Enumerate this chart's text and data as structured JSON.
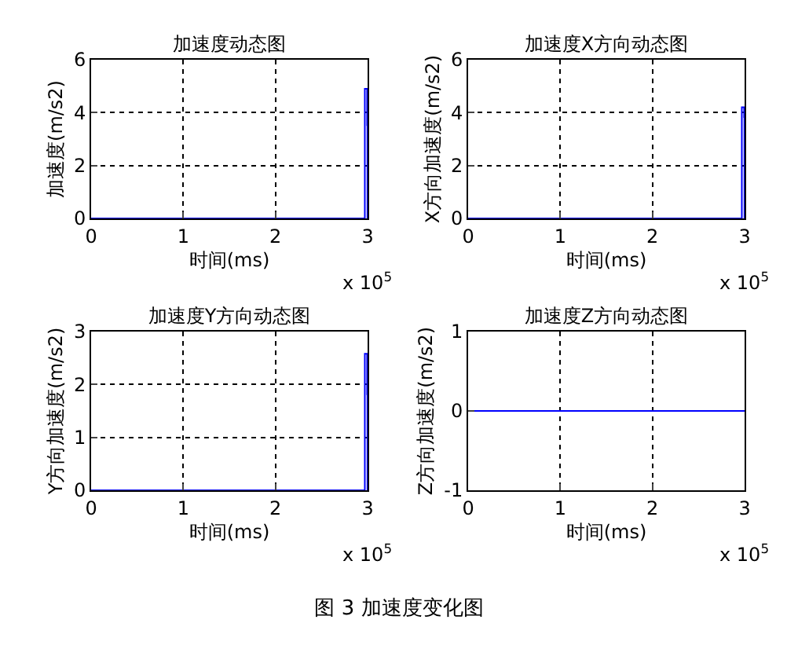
{
  "chart_data": [
    {
      "type": "line",
      "title": "加速度动态图",
      "xlabel": "时间(ms)",
      "ylabel": "加速度(m/s2)",
      "x": [
        0,
        2.97,
        2.97,
        2.995,
        2.995,
        2.996,
        2.997,
        2.998,
        2.999
      ],
      "series": [
        {
          "color": "#0000ff",
          "values": [
            0,
            0,
            4.9,
            4.9,
            3.5,
            4.6,
            3.6,
            4.5,
            0
          ]
        }
      ],
      "xlim": [
        0,
        3
      ],
      "xticks": [
        0,
        1,
        2,
        3
      ],
      "ylim": [
        0,
        6
      ],
      "yticks": [
        0,
        2,
        4,
        6
      ],
      "grid": true,
      "annotations": [
        "x 10$^{5}$",
        "图 3  加速度变化图"
      ]
    },
    {
      "type": "line",
      "title": "加速度X方向动态图",
      "xlabel": "时间(ms)",
      "ylabel": "X方向加速度(m/s2)",
      "x": [
        0,
        2.97,
        2.97,
        2.995,
        2.995,
        2.996,
        2.997,
        2.998,
        2.999
      ],
      "series": [
        {
          "color": "#0000ff",
          "values": [
            0,
            0,
            4.2,
            4.2,
            3.8,
            4.2,
            3.8,
            4.1,
            0
          ]
        }
      ],
      "xlim": [
        0,
        3
      ],
      "xticks": [
        0,
        1,
        2,
        3
      ],
      "ylim": [
        0,
        6
      ],
      "yticks": [
        0,
        2,
        4,
        6
      ],
      "grid": true,
      "annotations": [
        "x 10$^{5}$"
      ]
    },
    {
      "type": "line",
      "title": "加速度Y方向动态图",
      "xlabel": "时间(ms)",
      "ylabel": "Y方向加速度(m/s2)",
      "x": [
        0,
        2.97,
        2.97,
        2.995,
        2.995,
        2.996,
        2.997,
        2.998,
        2.999
      ],
      "series": [
        {
          "color": "#0000ff",
          "values": [
            0,
            0,
            2.58,
            2.58,
            1.8,
            2.5,
            1.9,
            2.4,
            0
          ]
        }
      ],
      "xlim": [
        0,
        3
      ],
      "xticks": [
        0,
        1,
        2,
        3
      ],
      "ylim": [
        0,
        3
      ],
      "yticks": [
        0,
        1,
        2,
        3
      ],
      "grid": true,
      "annotations": [
        "x 10$^{5}$"
      ]
    },
    {
      "type": "line",
      "title": "加速度Z方向动态图",
      "xlabel": "时间(ms)",
      "ylabel": "Z方向加速度(m/s2)",
      "x": [
        0,
        3
      ],
      "series": [
        {
          "color": "#0000ff",
          "values": [
            0,
            0
          ]
        }
      ],
      "xlim": [
        0,
        3
      ],
      "xticks": [
        0,
        1,
        2,
        3
      ],
      "ylim": [
        -1,
        1
      ],
      "yticks": [
        -1,
        0,
        1
      ],
      "grid": true,
      "annotations": [
        "x 10$^{5}$"
      ]
    }
  ]
}
